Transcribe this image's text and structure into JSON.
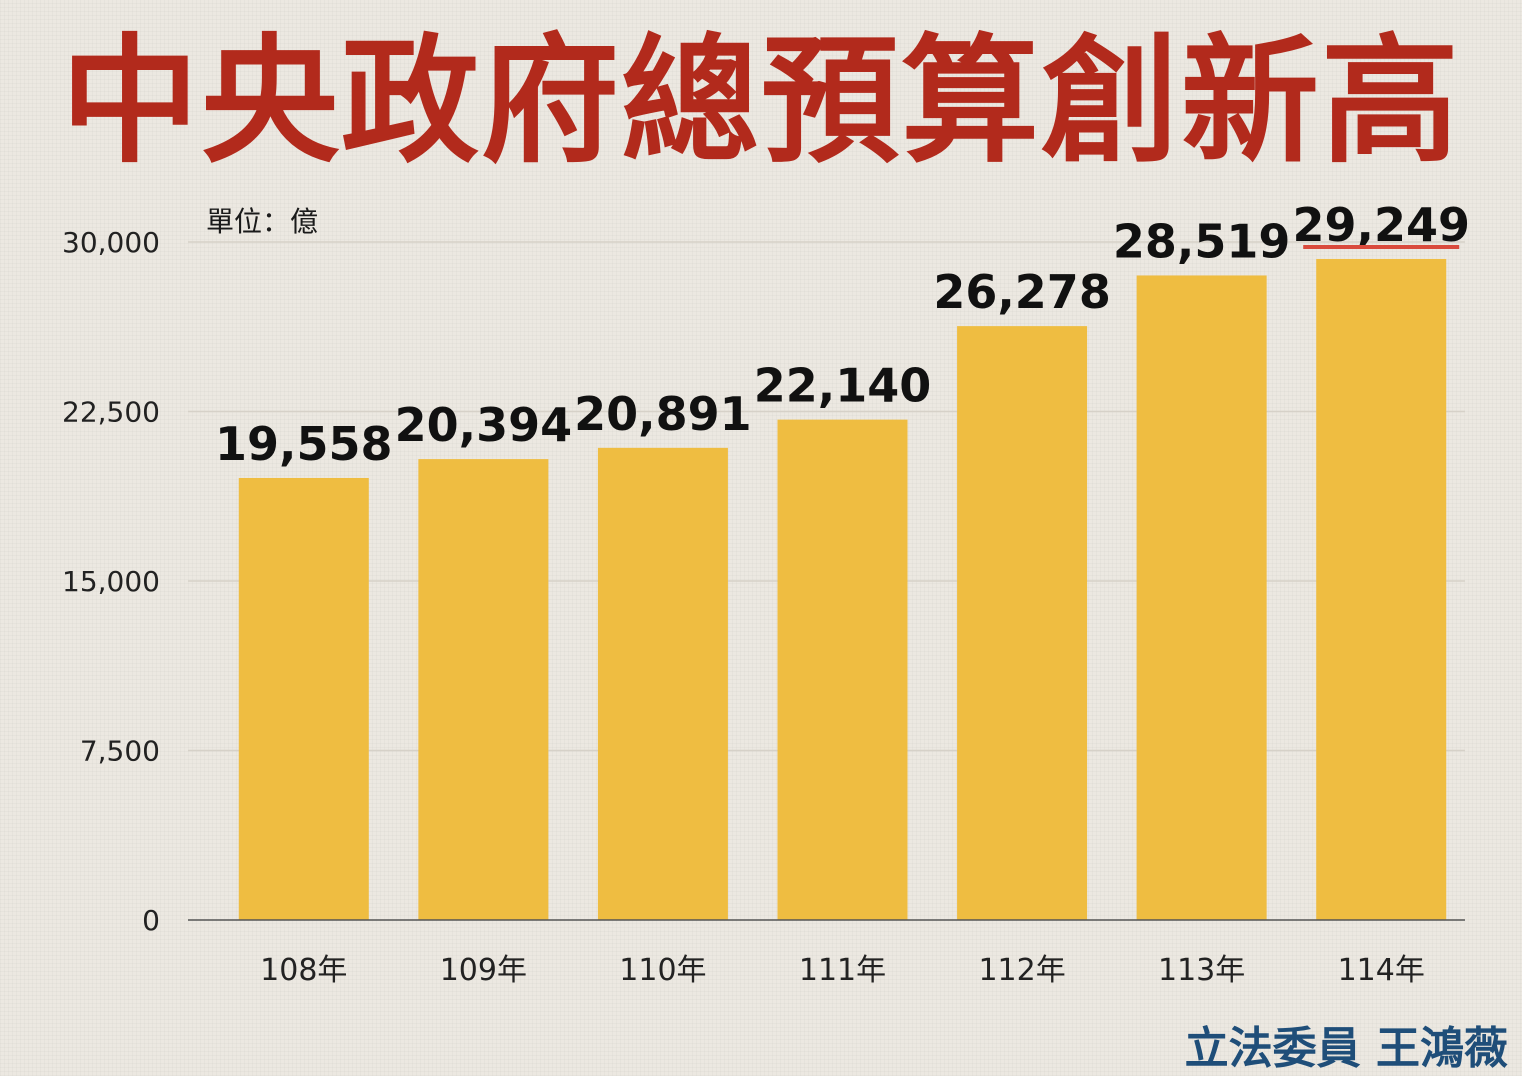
{
  "title": "中央政府總預算創新高",
  "unit_label": "單位：億",
  "credit": "立法委員 王鴻薇",
  "colors": {
    "title": "#b22a1c",
    "bar": "#efbd41",
    "grid": "#d6d1c8",
    "axis": "#555555",
    "highlight_underline": "#d94a3c",
    "credit": "#1f4e79"
  },
  "chart_data": {
    "type": "bar",
    "title": "中央政府總預算創新高",
    "xlabel": "",
    "ylabel": "",
    "unit": "單位：億",
    "categories": [
      "108年",
      "109年",
      "110年",
      "111年",
      "112年",
      "113年",
      "114年"
    ],
    "values": [
      19558,
      20394,
      20891,
      22140,
      26278,
      28519,
      29249
    ],
    "value_labels": [
      "19,558",
      "20,394",
      "20,891",
      "22,140",
      "26,278",
      "28,519",
      "29,249"
    ],
    "highlight_category": "114年",
    "ylim": [
      0,
      30000
    ],
    "yticks": [
      0,
      7500,
      15000,
      22500,
      30000
    ],
    "ytick_labels": [
      "0",
      "7,500",
      "15,000",
      "22,500",
      "30,000"
    ],
    "grid": true,
    "legend": "none"
  }
}
